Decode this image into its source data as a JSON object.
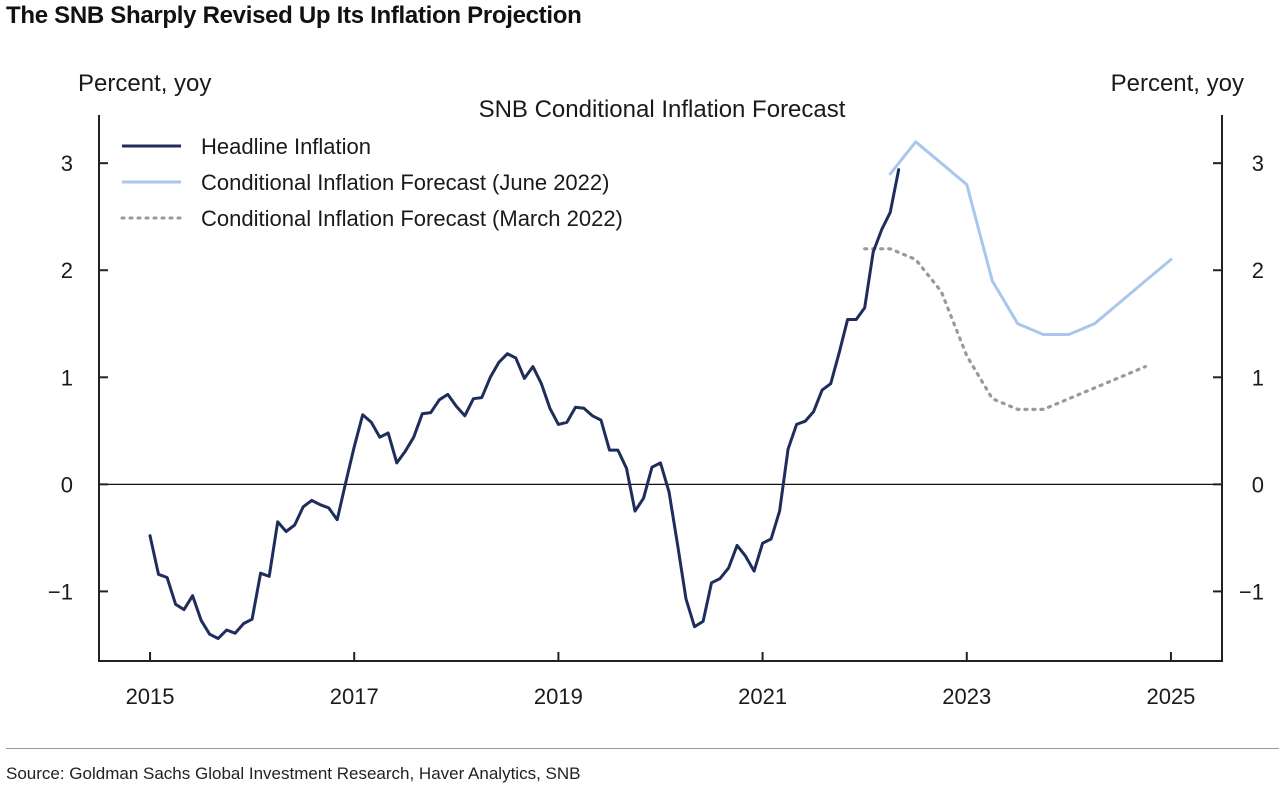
{
  "page": {
    "title": "The SNB Sharply Revised Up Its Inflation Projection",
    "source": "Source: Goldman Sachs Global Investment Research, Haver Analytics, SNB"
  },
  "chart_data": {
    "type": "line",
    "title": "SNB Conditional Inflation Forecast",
    "ylabel_left": "Percent, yoy",
    "ylabel_right": "Percent, yoy",
    "xlim": [
      2014.5,
      2025.5
    ],
    "ylim": [
      -1.65,
      3.45
    ],
    "x_ticks": [
      2015,
      2017,
      2019,
      2021,
      2023,
      2025
    ],
    "x_tick_labels": [
      "2015",
      "2017",
      "2019",
      "2021",
      "2023",
      "2025"
    ],
    "y_ticks": [
      -1,
      0,
      1,
      2,
      3
    ],
    "y_tick_labels": [
      "−1",
      "0",
      "1",
      "2",
      "3"
    ],
    "zero_line": true,
    "grid": false,
    "legend_position": "top-left",
    "series": [
      {
        "name": "Headline Inflation",
        "color": "#1f2d5c",
        "style": "solid",
        "x": [
          2015.0,
          2015.083,
          2015.167,
          2015.25,
          2015.333,
          2015.417,
          2015.5,
          2015.583,
          2015.667,
          2015.75,
          2015.833,
          2015.917,
          2016.0,
          2016.083,
          2016.167,
          2016.25,
          2016.333,
          2016.417,
          2016.5,
          2016.583,
          2016.667,
          2016.75,
          2016.833,
          2016.917,
          2017.0,
          2017.083,
          2017.167,
          2017.25,
          2017.333,
          2017.417,
          2017.5,
          2017.583,
          2017.667,
          2017.75,
          2017.833,
          2017.917,
          2018.0,
          2018.083,
          2018.167,
          2018.25,
          2018.333,
          2018.417,
          2018.5,
          2018.583,
          2018.667,
          2018.75,
          2018.833,
          2018.917,
          2019.0,
          2019.083,
          2019.167,
          2019.25,
          2019.333,
          2019.417,
          2019.5,
          2019.583,
          2019.667,
          2019.75,
          2019.833,
          2019.917,
          2020.0,
          2020.083,
          2020.167,
          2020.25,
          2020.333,
          2020.417,
          2020.5,
          2020.583,
          2020.667,
          2020.75,
          2020.833,
          2020.917,
          2021.0,
          2021.083,
          2021.167,
          2021.25,
          2021.333,
          2021.417,
          2021.5,
          2021.583,
          2021.667,
          2021.75,
          2021.833,
          2021.917,
          2022.0,
          2022.083,
          2022.167,
          2022.25,
          2022.333
        ],
        "y": [
          -0.48,
          -0.84,
          -0.87,
          -1.12,
          -1.17,
          -1.04,
          -1.27,
          -1.4,
          -1.44,
          -1.36,
          -1.39,
          -1.3,
          -1.26,
          -0.83,
          -0.86,
          -0.35,
          -0.44,
          -0.38,
          -0.21,
          -0.15,
          -0.19,
          -0.22,
          -0.33,
          0.02,
          0.35,
          0.65,
          0.58,
          0.44,
          0.48,
          0.2,
          0.31,
          0.44,
          0.66,
          0.67,
          0.79,
          0.84,
          0.73,
          0.64,
          0.8,
          0.81,
          1.0,
          1.14,
          1.22,
          1.18,
          0.99,
          1.1,
          0.94,
          0.71,
          0.56,
          0.58,
          0.72,
          0.71,
          0.64,
          0.6,
          0.32,
          0.32,
          0.15,
          -0.25,
          -0.13,
          0.16,
          0.2,
          -0.07,
          -0.56,
          -1.07,
          -1.33,
          -1.28,
          -0.92,
          -0.88,
          -0.78,
          -0.57,
          -0.67,
          -0.81,
          -0.55,
          -0.51,
          -0.25,
          0.33,
          0.56,
          0.59,
          0.68,
          0.88,
          0.94,
          1.23,
          1.54,
          1.54,
          1.65,
          2.17,
          2.38,
          2.54,
          2.94
        ]
      },
      {
        "name": "Conditional Inflation Forecast (June 2022)",
        "color": "#a9c7ec",
        "style": "solid",
        "x": [
          2022.25,
          2022.5,
          2022.75,
          2023.0,
          2023.25,
          2023.5,
          2023.75,
          2024.0,
          2024.25,
          2024.5,
          2024.75,
          2025.0
        ],
        "y": [
          2.9,
          3.2,
          3.0,
          2.8,
          1.9,
          1.5,
          1.4,
          1.4,
          1.5,
          1.7,
          1.9,
          2.1
        ]
      },
      {
        "name": "Conditional Inflation Forecast (March 2022)",
        "color": "#9a9a9a",
        "style": "dotted",
        "x": [
          2022.0,
          2022.25,
          2022.5,
          2022.75,
          2023.0,
          2023.25,
          2023.5,
          2023.75,
          2024.0,
          2024.25,
          2024.5,
          2024.75
        ],
        "y": [
          2.2,
          2.2,
          2.1,
          1.8,
          1.2,
          0.8,
          0.7,
          0.7,
          0.8,
          0.9,
          1.0,
          1.1
        ]
      }
    ]
  }
}
